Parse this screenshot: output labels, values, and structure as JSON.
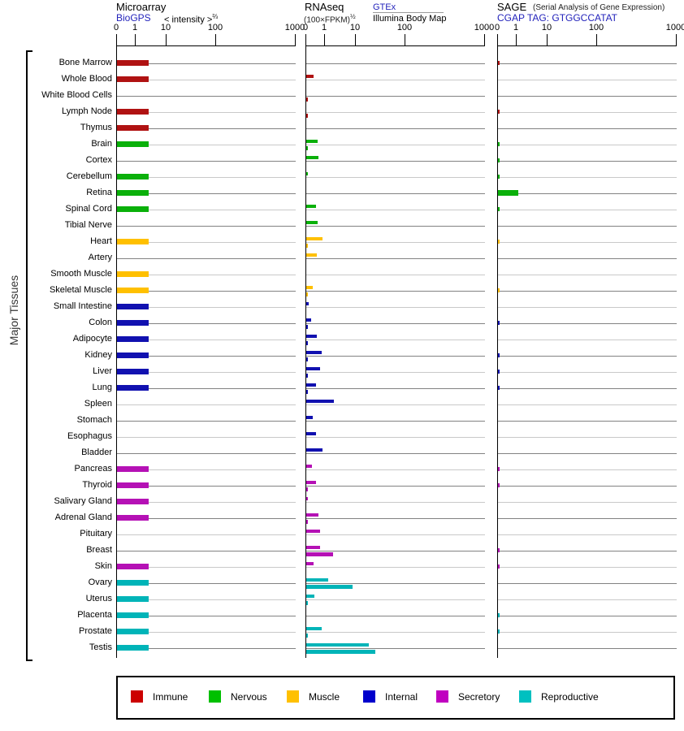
{
  "headers": {
    "microarray": {
      "title": "Microarray",
      "source": "BioGPS",
      "note": "< intensity >",
      "note_sup": "⅔"
    },
    "rnaseq": {
      "title": "RNAseq",
      "unit": "(100×FPKM)",
      "unit_sup": "½",
      "source1": "GTEx",
      "source2": "Illumina Body Map"
    },
    "sage": {
      "title": "SAGE",
      "note": "(Serial Analysis of Gene Expression)",
      "source": "CGAP TAG: GTGGCCATAT"
    }
  },
  "left_label": "Major Tissues",
  "chart_data": {
    "type": "bar",
    "orientation": "horizontal",
    "group_label": "Major Tissues",
    "axis_ticks": [
      0,
      1,
      10,
      100,
      1000
    ],
    "axis_note": "identical nonlinear expression scale on all three panels",
    "panels": [
      {
        "id": "microarray",
        "title": "Microarray",
        "source": "BioGPS",
        "series": [
          "microarray"
        ]
      },
      {
        "id": "rnaseq",
        "title": "RNAseq",
        "sources": [
          "GTEx",
          "Illumina Body Map"
        ],
        "series": [
          "gtex",
          "illumina"
        ]
      },
      {
        "id": "sage",
        "title": "SAGE",
        "source": "CGAP TAG: GTGGCCATAT",
        "series": [
          "sage"
        ]
      }
    ],
    "category_colors": {
      "Immune": "#b01212",
      "Nervous": "#0ab00a",
      "Muscle": "#ffc000",
      "Internal": "#1111b0",
      "Secretory": "#b511b5",
      "Reproductive": "#00b4b8"
    },
    "legend": [
      {
        "label": "Immune",
        "color": "#cc0000"
      },
      {
        "label": "Nervous",
        "color": "#00c000"
      },
      {
        "label": "Muscle",
        "color": "#ffc000"
      },
      {
        "label": "Internal",
        "color": "#0000cc"
      },
      {
        "label": "Secretory",
        "color": "#c000c0"
      },
      {
        "label": "Reproductive",
        "color": "#00c0c0"
      }
    ],
    "tissues": [
      {
        "name": "Bone Marrow",
        "category": "Immune",
        "microarray": 2.6,
        "sage": 0.08
      },
      {
        "name": "Whole Blood",
        "category": "Immune",
        "microarray": 2.6,
        "gtex": 0.4
      },
      {
        "name": "White Blood Cells",
        "category": "Immune",
        "illumina": 0.07
      },
      {
        "name": "Lymph Node",
        "category": "Immune",
        "microarray": 2.6,
        "illumina": 0.07,
        "sage": 0.08
      },
      {
        "name": "Thymus",
        "category": "Immune",
        "microarray": 2.6
      },
      {
        "name": "Brain",
        "category": "Nervous",
        "microarray": 2.6,
        "gtex": 0.6,
        "illumina": 0.09,
        "sage": 0.08
      },
      {
        "name": "Cortex",
        "category": "Nervous",
        "gtex": 0.65,
        "sage": 0.08
      },
      {
        "name": "Cerebellum",
        "category": "Nervous",
        "microarray": 2.6,
        "gtex": 0.1,
        "sage": 0.08
      },
      {
        "name": "Retina",
        "category": "Nervous",
        "microarray": 2.6,
        "sage": 1.1
      },
      {
        "name": "Spinal Cord",
        "category": "Nervous",
        "microarray": 2.6,
        "gtex": 0.5,
        "sage": 0.08
      },
      {
        "name": "Tibial Nerve",
        "category": "Nervous",
        "gtex": 0.6
      },
      {
        "name": "Heart",
        "category": "Muscle",
        "microarray": 2.6,
        "gtex": 0.85,
        "illumina": 0.1,
        "sage": 0.08
      },
      {
        "name": "Artery",
        "category": "Muscle",
        "gtex": 0.57
      },
      {
        "name": "Smooth Muscle",
        "category": "Muscle",
        "microarray": 2.6
      },
      {
        "name": "Skeletal Muscle",
        "category": "Muscle",
        "microarray": 2.6,
        "gtex": 0.35,
        "illumina": 0.09,
        "sage": 0.08
      },
      {
        "name": "Small Intestine",
        "category": "Internal",
        "microarray": 2.6,
        "gtex": 0.13
      },
      {
        "name": "Colon",
        "category": "Internal",
        "microarray": 2.6,
        "gtex": 0.26,
        "illumina": 0.09,
        "sage": 0.08
      },
      {
        "name": "Adipocyte",
        "category": "Internal",
        "microarray": 2.6,
        "gtex": 0.57,
        "illumina": 0.09
      },
      {
        "name": "Kidney",
        "category": "Internal",
        "microarray": 2.6,
        "gtex": 0.83,
        "illumina": 0.09,
        "sage": 0.08
      },
      {
        "name": "Liver",
        "category": "Internal",
        "microarray": 2.6,
        "gtex": 0.74,
        "illumina": 0.09,
        "sage": 0.08
      },
      {
        "name": "Lung",
        "category": "Internal",
        "microarray": 2.6,
        "gtex": 0.52,
        "illumina": 0.09,
        "sage": 0.08
      },
      {
        "name": "Spleen",
        "category": "Internal",
        "gtex": 2.0
      },
      {
        "name": "Stomach",
        "category": "Internal",
        "gtex": 0.35
      },
      {
        "name": "Esophagus",
        "category": "Internal",
        "gtex": 0.52
      },
      {
        "name": "Bladder",
        "category": "Internal",
        "gtex": 0.87
      },
      {
        "name": "Pancreas",
        "category": "Secretory",
        "microarray": 2.6,
        "gtex": 0.3,
        "sage": 0.08
      },
      {
        "name": "Thyroid",
        "category": "Secretory",
        "microarray": 2.6,
        "gtex": 0.52,
        "illumina": 0.07,
        "sage": 0.08
      },
      {
        "name": "Salivary Gland",
        "category": "Secretory",
        "microarray": 2.6,
        "gtex": 0.1
      },
      {
        "name": "Adrenal Gland",
        "category": "Secretory",
        "microarray": 2.6,
        "gtex": 0.65,
        "illumina": 0.09
      },
      {
        "name": "Pituitary",
        "category": "Secretory",
        "gtex": 0.74
      },
      {
        "name": "Breast",
        "category": "Secretory",
        "gtex": 0.74,
        "illumina": 1.8,
        "sage": 0.08
      },
      {
        "name": "Skin",
        "category": "Secretory",
        "microarray": 2.6,
        "gtex": 0.4,
        "sage": 0.08
      },
      {
        "name": "Ovary",
        "category": "Reproductive",
        "microarray": 2.6,
        "gtex": 1.3,
        "illumina": 8
      },
      {
        "name": "Uterus",
        "category": "Reproductive",
        "microarray": 2.6,
        "gtex": 0.43,
        "illumina": 0.07
      },
      {
        "name": "Placenta",
        "category": "Reproductive",
        "microarray": 2.6,
        "sage": 0.08
      },
      {
        "name": "Prostate",
        "category": "Reproductive",
        "microarray": 2.6,
        "gtex": 0.83,
        "illumina": 0.09,
        "sage": 0.08
      },
      {
        "name": "Testis",
        "category": "Reproductive",
        "microarray": 2.6,
        "gtex": 18,
        "illumina": 25
      }
    ]
  }
}
